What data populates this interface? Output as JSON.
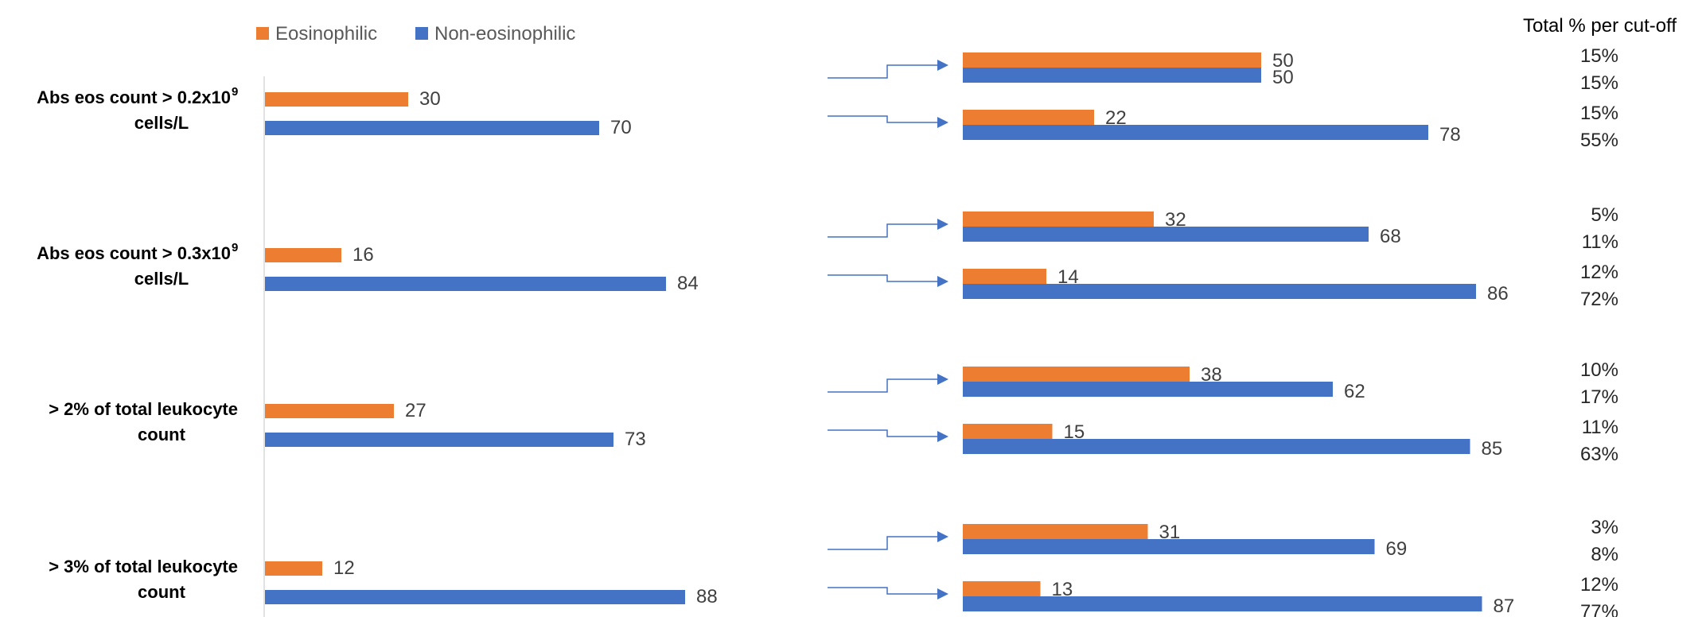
{
  "colors": {
    "eosinophilic": "#ED7D31",
    "non_eosinophilic": "#4472C4",
    "arrow": "#4472C4",
    "axis": "#D9D9D9"
  },
  "legend": {
    "eosinophilic": "Eosinophilic",
    "non_eosinophilic": "Non-eosinophilic"
  },
  "total_title": "Total % per cut-off",
  "chart_data": [
    {
      "type": "bar",
      "orientation": "horizontal",
      "categories": [
        [
          "Abs eos count > 0.2x10",
          "9",
          "cells/L"
        ],
        [
          "Abs eos count > 0.3x10",
          "9",
          "cells/L"
        ],
        [
          "> 2% of total leukocyte",
          "",
          "count"
        ],
        [
          "> 3% of total leukocyte",
          "",
          "count"
        ]
      ],
      "series": [
        {
          "name": "Eosinophilic",
          "values": [
            30,
            16,
            27,
            12
          ]
        },
        {
          "name": "Non-eosinophilic",
          "values": [
            70,
            84,
            73,
            88
          ]
        }
      ],
      "xlim": [
        0,
        100
      ],
      "legend_position": "top-left"
    },
    {
      "type": "bar",
      "orientation": "horizontal",
      "groups": [
        {
          "pairs": [
            {
              "eos": 50,
              "non": 50,
              "pct": [
                "15%",
                "15%"
              ]
            },
            {
              "eos": 22,
              "non": 78,
              "pct": [
                "15%",
                "55%"
              ]
            }
          ]
        },
        {
          "pairs": [
            {
              "eos": 32,
              "non": 68,
              "pct": [
                "5%",
                "11%"
              ]
            },
            {
              "eos": 14,
              "non": 86,
              "pct": [
                "12%",
                "72%"
              ]
            }
          ]
        },
        {
          "pairs": [
            {
              "eos": 38,
              "non": 62,
              "pct": [
                "10%",
                "17%"
              ]
            },
            {
              "eos": 15,
              "non": 85,
              "pct": [
                "11%",
                "63%"
              ]
            }
          ]
        },
        {
          "pairs": [
            {
              "eos": 31,
              "non": 69,
              "pct": [
                "3%",
                "8%"
              ]
            },
            {
              "eos": 13,
              "non": 87,
              "pct": [
                "12%",
                "77%"
              ]
            }
          ]
        }
      ],
      "xlim": [
        0,
        100
      ]
    }
  ]
}
